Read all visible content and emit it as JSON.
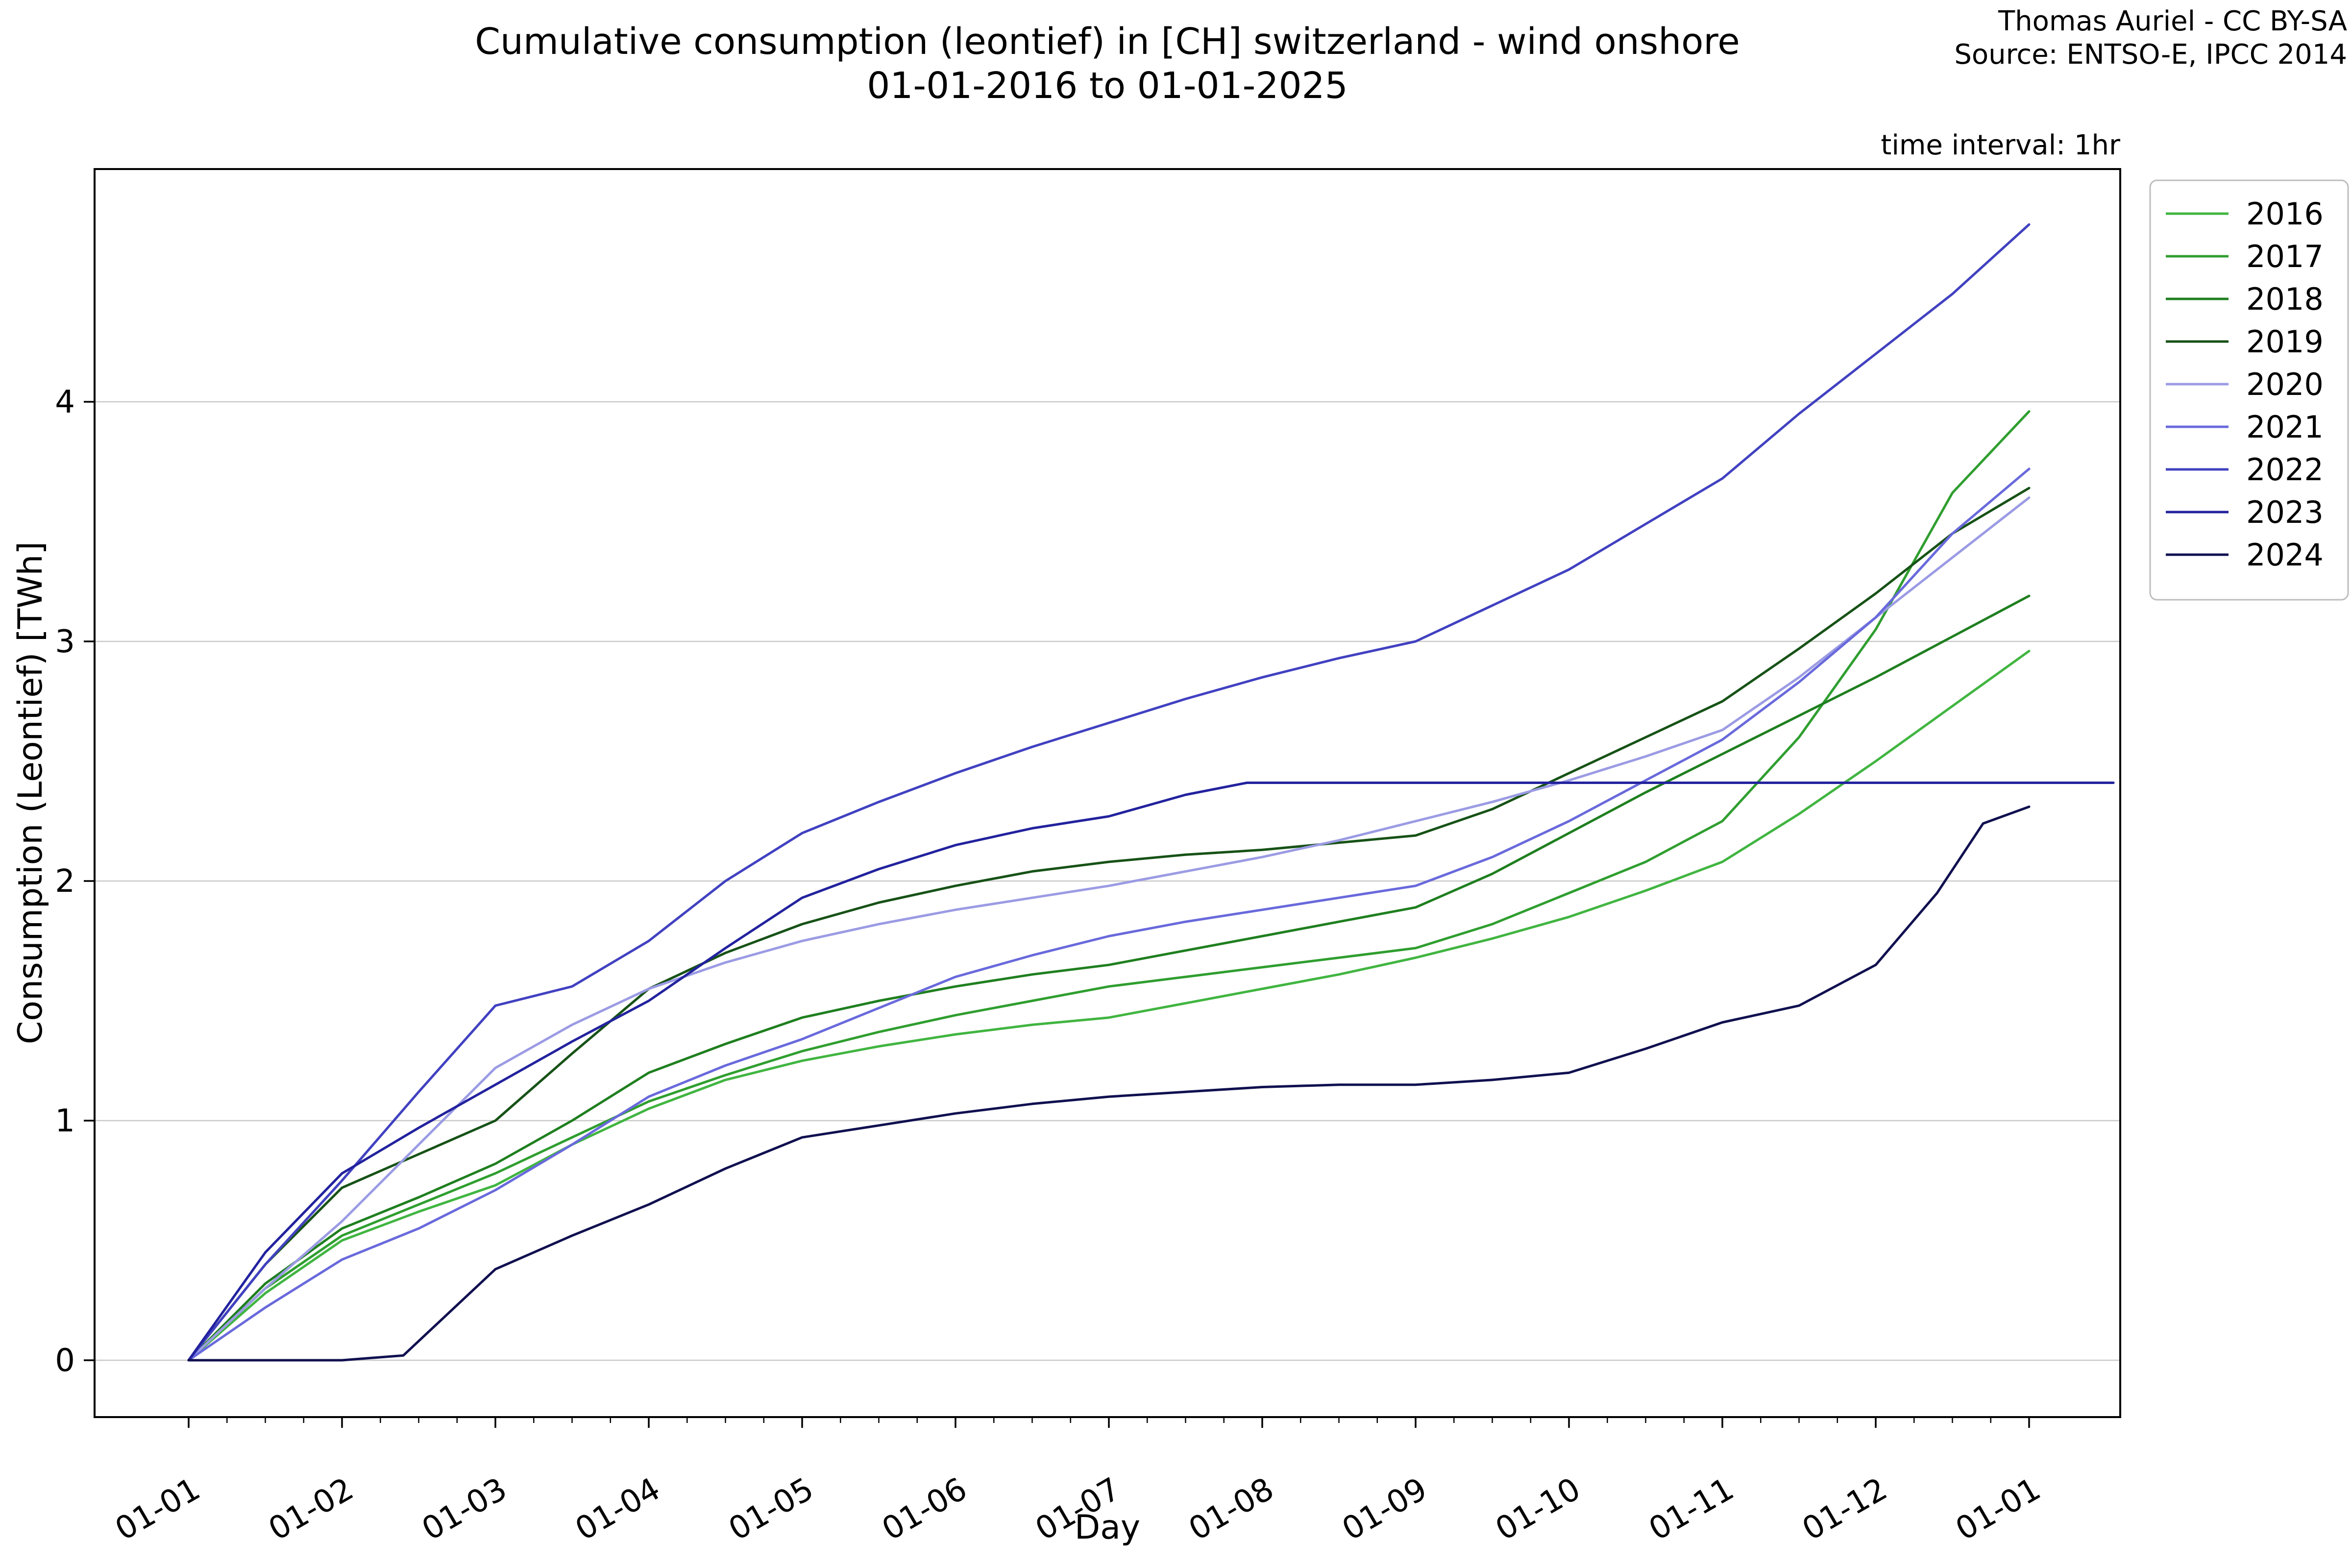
{
  "title": {
    "line1": "Cumulative consumption (leontief) in [CH] switzerland - wind onshore",
    "line2": "01-01-2016 to 01-01-2025"
  },
  "attribution": {
    "line1": "Thomas Auriel - CC BY-SA",
    "line2": "Source: ENTSO-E, IPCC 2014"
  },
  "annotation": "time interval: 1hr",
  "axes": {
    "xlabel": "Day",
    "ylabel": "Consumption (Leontief) [TWh]",
    "x_ticks": [
      "01-01",
      "01-02",
      "01-03",
      "01-04",
      "01-05",
      "01-06",
      "01-07",
      "01-08",
      "01-09",
      "01-10",
      "01-11",
      "01-12",
      "01-01"
    ],
    "y_ticks": [
      0,
      1,
      2,
      3,
      4
    ]
  },
  "chart_data": {
    "type": "line",
    "title": "Cumulative consumption (leontief) in [CH] switzerland - wind onshore 01-01-2016 to 01-01-2025",
    "xlabel": "Day",
    "ylabel": "Consumption (Leontief) [TWh]",
    "x_unit": "months since Jan 1 (tick labels are day-month dates)",
    "y_unit": "TWh",
    "xlim": [
      -0.6,
      12.6
    ],
    "ylim": [
      -0.24,
      4.97
    ],
    "grid": true,
    "legend_position": "upper right, outside axes",
    "series": [
      {
        "name": "2016",
        "color": "#41b541",
        "x": [
          0,
          0.5,
          1,
          1.5,
          2,
          2.5,
          3,
          3.5,
          4,
          4.5,
          5,
          5.5,
          6,
          6.5,
          7,
          7.5,
          8,
          8.5,
          9,
          9.5,
          10,
          10.5,
          11,
          11.5,
          12
        ],
        "y": [
          0,
          0.28,
          0.5,
          0.62,
          0.73,
          0.9,
          1.05,
          1.17,
          1.25,
          1.31,
          1.36,
          1.4,
          1.43,
          1.49,
          1.55,
          1.61,
          1.68,
          1.76,
          1.85,
          1.96,
          2.08,
          2.28,
          2.5,
          2.73,
          2.96
        ]
      },
      {
        "name": "2017",
        "color": "#2f9e2f",
        "x": [
          0,
          0.5,
          1,
          1.5,
          2,
          2.5,
          3,
          3.5,
          4,
          4.5,
          5,
          5.5,
          6,
          6.5,
          7,
          7.5,
          8,
          8.5,
          9,
          9.5,
          10,
          10.5,
          11,
          11.5,
          12
        ],
        "y": [
          0,
          0.3,
          0.52,
          0.65,
          0.78,
          0.93,
          1.08,
          1.19,
          1.29,
          1.37,
          1.44,
          1.5,
          1.56,
          1.6,
          1.64,
          1.68,
          1.72,
          1.82,
          1.95,
          2.08,
          2.25,
          2.6,
          3.05,
          3.62,
          3.96
        ]
      },
      {
        "name": "2018",
        "color": "#1f7f1f",
        "x": [
          0,
          0.5,
          1,
          1.5,
          2,
          2.5,
          3,
          3.5,
          4,
          4.5,
          5,
          5.5,
          6,
          6.5,
          7,
          7.5,
          8,
          8.5,
          9,
          9.5,
          10,
          10.5,
          11,
          11.5,
          12
        ],
        "y": [
          0,
          0.32,
          0.55,
          0.68,
          0.82,
          1.0,
          1.2,
          1.32,
          1.43,
          1.5,
          1.56,
          1.61,
          1.65,
          1.71,
          1.77,
          1.83,
          1.89,
          2.03,
          2.2,
          2.37,
          2.53,
          2.69,
          2.85,
          3.02,
          3.19
        ]
      },
      {
        "name": "2019",
        "color": "#175217",
        "x": [
          0,
          0.5,
          1,
          1.5,
          2,
          2.5,
          3,
          3.5,
          4,
          4.5,
          5,
          5.5,
          6,
          6.5,
          7,
          7.5,
          8,
          8.5,
          9,
          9.5,
          10,
          10.5,
          11,
          11.5,
          12
        ],
        "y": [
          0,
          0.4,
          0.72,
          0.86,
          1.0,
          1.28,
          1.55,
          1.7,
          1.82,
          1.91,
          1.98,
          2.04,
          2.08,
          2.11,
          2.13,
          2.16,
          2.19,
          2.3,
          2.45,
          2.6,
          2.75,
          2.97,
          3.2,
          3.45,
          3.64
        ]
      },
      {
        "name": "2020",
        "color": "#9b9be4",
        "x": [
          0,
          0.5,
          1,
          1.5,
          2,
          2.5,
          3,
          3.5,
          4,
          4.5,
          5,
          5.5,
          6,
          6.5,
          7,
          7.5,
          8,
          8.5,
          9,
          9.5,
          10,
          10.5,
          11,
          11.5,
          12
        ],
        "y": [
          0,
          0.3,
          0.58,
          0.9,
          1.22,
          1.4,
          1.55,
          1.66,
          1.75,
          1.82,
          1.88,
          1.93,
          1.98,
          2.04,
          2.1,
          2.17,
          2.25,
          2.33,
          2.42,
          2.52,
          2.63,
          2.85,
          3.1,
          3.35,
          3.6
        ]
      },
      {
        "name": "2021",
        "color": "#6969dc",
        "x": [
          0,
          0.5,
          1,
          1.5,
          2,
          2.5,
          3,
          3.5,
          4,
          4.5,
          5,
          5.5,
          6,
          6.5,
          7,
          7.5,
          8,
          8.5,
          9,
          9.5,
          10,
          10.5,
          11,
          11.5,
          12
        ],
        "y": [
          0,
          0.22,
          0.42,
          0.55,
          0.71,
          0.9,
          1.1,
          1.23,
          1.34,
          1.47,
          1.6,
          1.69,
          1.77,
          1.83,
          1.88,
          1.93,
          1.98,
          2.1,
          2.25,
          2.42,
          2.59,
          2.83,
          3.1,
          3.45,
          3.72
        ]
      },
      {
        "name": "2022",
        "color": "#4141c1",
        "x": [
          0,
          0.5,
          1,
          1.5,
          2,
          2.5,
          3,
          3.5,
          4,
          4.5,
          5,
          5.5,
          6,
          6.5,
          7,
          7.5,
          8,
          8.5,
          9,
          9.5,
          10,
          10.5,
          11,
          11.5,
          12
        ],
        "y": [
          0,
          0.4,
          0.75,
          1.12,
          1.48,
          1.56,
          1.75,
          2.0,
          2.2,
          2.33,
          2.45,
          2.56,
          2.66,
          2.76,
          2.85,
          2.93,
          3.0,
          3.15,
          3.3,
          3.49,
          3.68,
          3.95,
          4.2,
          4.45,
          4.74
        ]
      },
      {
        "name": "2023",
        "color": "#22229e",
        "x": [
          0,
          0.5,
          1,
          1.5,
          2,
          2.5,
          3,
          3.5,
          4,
          4.5,
          5,
          5.5,
          6,
          6.5,
          6.9,
          12.55
        ],
        "y": [
          0,
          0.45,
          0.78,
          0.97,
          1.15,
          1.33,
          1.5,
          1.72,
          1.93,
          2.05,
          2.15,
          2.22,
          2.27,
          2.36,
          2.41,
          2.41
        ]
      },
      {
        "name": "2024",
        "color": "#101050",
        "x": [
          0,
          1,
          1.4,
          1.7,
          2,
          2.5,
          3,
          3.5,
          4,
          4.5,
          5,
          5.5,
          6,
          6.5,
          7,
          7.5,
          8,
          8.5,
          9,
          9.5,
          10,
          10.5,
          11,
          11.4,
          11.7,
          12
        ],
        "y": [
          0,
          0,
          0.02,
          0.2,
          0.38,
          0.52,
          0.65,
          0.8,
          0.93,
          0.98,
          1.03,
          1.07,
          1.1,
          1.12,
          1.14,
          1.15,
          1.15,
          1.17,
          1.2,
          1.3,
          1.41,
          1.48,
          1.65,
          1.95,
          2.24,
          2.31
        ]
      }
    ]
  },
  "colors": {
    "grid": "#c9c9c9",
    "background": "#ffffff",
    "text": "#000000"
  }
}
